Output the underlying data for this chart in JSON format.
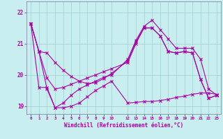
{
  "xlabel": "Windchill (Refroidissement éolien,°C)",
  "background_color": "#c8eef0",
  "grid_color": "#9ecfcf",
  "line_color": "#aa00aa",
  "xlim": [
    -0.5,
    23.5
  ],
  "ylim": [
    18.75,
    22.35
  ],
  "xticks": [
    0,
    1,
    2,
    3,
    4,
    5,
    6,
    7,
    8,
    9,
    10,
    12,
    13,
    14,
    15,
    16,
    17,
    18,
    19,
    20,
    21,
    22,
    23
  ],
  "yticks": [
    19,
    20,
    21,
    22
  ],
  "x_hours": [
    0,
    1,
    2,
    3,
    4,
    5,
    6,
    7,
    8,
    9,
    10,
    12,
    13,
    14,
    15,
    16,
    17,
    18,
    19,
    20,
    21,
    22,
    23
  ],
  "line1_y": [
    21.65,
    20.75,
    19.55,
    18.95,
    19.1,
    19.35,
    19.55,
    19.68,
    19.8,
    19.92,
    20.0,
    20.5,
    21.1,
    21.55,
    21.75,
    21.45,
    21.15,
    20.85,
    20.85,
    20.85,
    20.5,
    19.55,
    19.35
  ],
  "line2_y": [
    21.65,
    20.75,
    19.9,
    19.55,
    19.6,
    19.7,
    19.8,
    19.9,
    20.0,
    20.1,
    20.2,
    20.4,
    21.0,
    21.5,
    21.5,
    21.25,
    20.75,
    20.7,
    20.75,
    20.7,
    19.85,
    19.25,
    19.35
  ],
  "line3_y": [
    21.65,
    19.6,
    19.6,
    18.95,
    18.95,
    19.0,
    19.1,
    19.3,
    19.5,
    19.65,
    19.8,
    19.1,
    19.12,
    19.15,
    19.15,
    19.18,
    19.22,
    19.28,
    19.32,
    19.38,
    19.42,
    19.42,
    19.38
  ],
  "line4_y": [
    21.65,
    20.75,
    20.7,
    20.4,
    20.15,
    19.95,
    19.8,
    19.72,
    19.75,
    19.88,
    20.05,
    20.45,
    21.05,
    21.5,
    21.5,
    21.25,
    20.75,
    20.7,
    20.75,
    20.7,
    19.85,
    19.25,
    19.35
  ]
}
